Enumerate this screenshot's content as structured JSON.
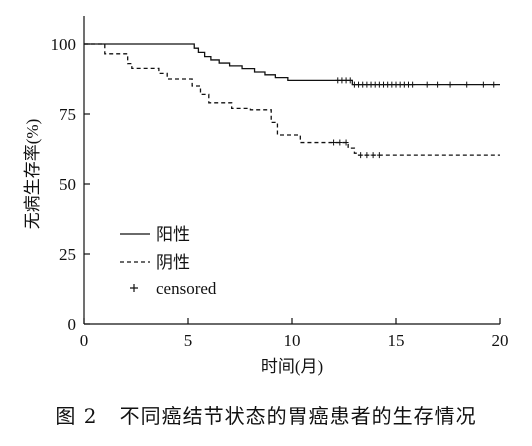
{
  "caption": {
    "figure_number": "图 2",
    "text": "不同癌结节状态的胃癌患者的生存情况"
  },
  "chart_data": {
    "type": "line",
    "xlabel": "时间(月)",
    "ylabel": "无病生存率(%)",
    "xlim": [
      0,
      20
    ],
    "ylim": [
      0,
      100
    ],
    "xticks": [
      "0",
      "5",
      "10",
      "15",
      "20"
    ],
    "yticks": [
      "0",
      "25",
      "50",
      "75",
      "100"
    ],
    "grid": false,
    "legend_position": "bottom-left",
    "legend": [
      {
        "label": "阳性",
        "style": "solid"
      },
      {
        "label": "阴性",
        "style": "dashed"
      },
      {
        "label": "censored",
        "style": "plus"
      }
    ],
    "series": [
      {
        "name": "阳性",
        "style": "solid",
        "color": "#111111",
        "steps": [
          [
            0,
            100
          ],
          [
            5.3,
            98.5
          ],
          [
            5.5,
            97
          ],
          [
            5.8,
            95.5
          ],
          [
            6.1,
            94.3
          ],
          [
            6.5,
            93.2
          ],
          [
            7.0,
            92.2
          ],
          [
            7.6,
            91.2
          ],
          [
            8.2,
            90.0
          ],
          [
            8.7,
            89.0
          ],
          [
            9.2,
            88.0
          ],
          [
            9.8,
            87.0
          ],
          [
            12.9,
            85.5
          ],
          [
            20,
            85.5
          ]
        ],
        "censored": [
          12.2,
          12.4,
          12.6,
          12.8,
          13.0,
          13.2,
          13.4,
          13.6,
          13.8,
          14.0,
          14.2,
          14.4,
          14.6,
          14.8,
          15.0,
          15.2,
          15.4,
          15.6,
          15.8,
          16.5,
          17.0,
          17.6,
          18.4,
          19.2,
          19.7
        ]
      },
      {
        "name": "阴性",
        "style": "dashed",
        "color": "#111111",
        "steps": [
          [
            0,
            100
          ],
          [
            1.0,
            96.5
          ],
          [
            2.1,
            93.0
          ],
          [
            2.3,
            91.3
          ],
          [
            3.6,
            89.5
          ],
          [
            4.0,
            87.5
          ],
          [
            5.2,
            85.0
          ],
          [
            5.6,
            82.0
          ],
          [
            6.0,
            79.0
          ],
          [
            7.1,
            77.0
          ],
          [
            8.0,
            76.5
          ],
          [
            8.3,
            76.5
          ],
          [
            9.0,
            72.0
          ],
          [
            9.3,
            67.5
          ],
          [
            10.4,
            64.8
          ],
          [
            12.7,
            62.8
          ],
          [
            13.0,
            61.0
          ],
          [
            13.2,
            60.3
          ],
          [
            20,
            60.3
          ]
        ],
        "censored": [
          12.0,
          12.3,
          12.6,
          13.3,
          13.6,
          13.9,
          14.2
        ]
      }
    ]
  }
}
